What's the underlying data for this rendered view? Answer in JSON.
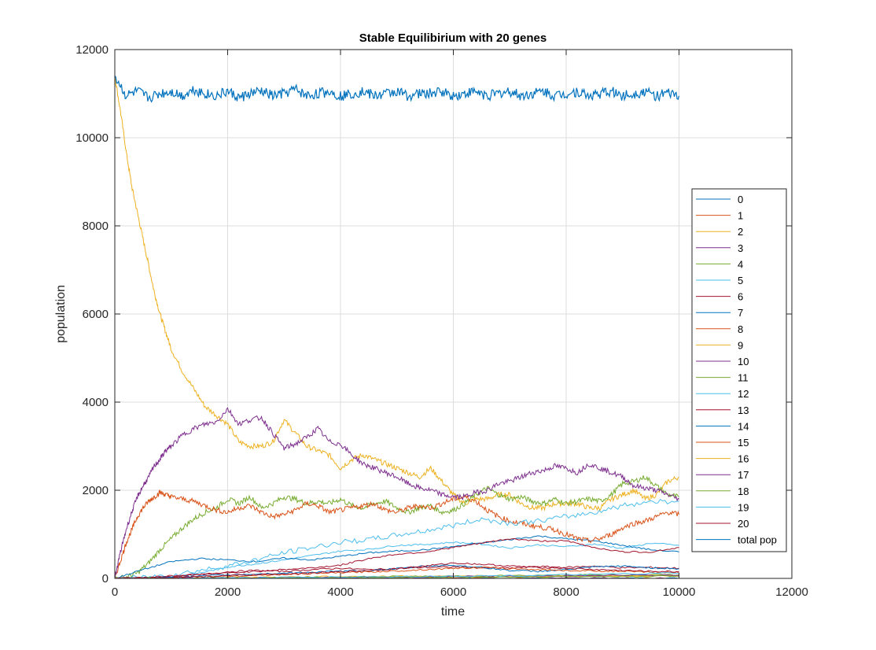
{
  "chart_data": {
    "type": "line",
    "title": "Stable Equilibirium with 20 genes",
    "xlabel": "time",
    "ylabel": "population",
    "xlim": [
      0,
      12000
    ],
    "ylim": [
      0,
      12000
    ],
    "xticks": [
      0,
      2000,
      4000,
      6000,
      8000,
      10000,
      12000
    ],
    "yticks": [
      0,
      2000,
      4000,
      6000,
      8000,
      10000,
      12000
    ],
    "xtick_labels": [
      "0",
      "2000",
      "4000",
      "6000",
      "8000",
      "10000",
      "12000"
    ],
    "ytick_labels": [
      "0",
      "2000",
      "4000",
      "6000",
      "8000",
      "10000",
      "12000"
    ],
    "grid": true,
    "legend_position": "right",
    "series": [
      {
        "name": "0",
        "color": "#0072BD",
        "x": [
          0,
          1000,
          2000,
          3000,
          4000,
          5000,
          6000,
          7000,
          8000,
          9000,
          10000
        ],
        "y": [
          0,
          0,
          0,
          0,
          0,
          0,
          0,
          0,
          0,
          0,
          0
        ]
      },
      {
        "name": "1",
        "color": "#D95319",
        "x": [
          0,
          1000,
          2000,
          3000,
          4000,
          5000,
          6000,
          7000,
          8000,
          9000,
          10000
        ],
        "y": [
          0,
          0,
          0,
          0,
          0,
          0,
          0,
          0,
          0,
          0,
          0
        ]
      },
      {
        "name": "2",
        "color": "#EDB120",
        "x": [
          0,
          100,
          200,
          300,
          400,
          500,
          600,
          700,
          800,
          900,
          1000,
          1200,
          1400,
          1600,
          1800,
          2000,
          2200,
          2400,
          2600,
          2800,
          3000,
          3200,
          3400,
          3600,
          3800,
          4000,
          4200,
          4400,
          4600,
          4800,
          5000,
          5200,
          5400,
          5600,
          5800,
          6000,
          6200,
          6400,
          6600,
          6800,
          7000,
          7200,
          7400,
          7600,
          7800,
          8000,
          8200,
          8400,
          8600,
          8800,
          9000,
          9200,
          9400,
          9600,
          9800,
          10000
        ],
        "y": [
          11400,
          10600,
          9700,
          8900,
          8300,
          7700,
          7100,
          6500,
          6000,
          5600,
          5200,
          4700,
          4300,
          3900,
          3700,
          3500,
          3100,
          3000,
          3000,
          3100,
          3600,
          3300,
          3000,
          2900,
          2800,
          2500,
          2700,
          2800,
          2700,
          2600,
          2500,
          2400,
          2300,
          2500,
          2200,
          1900,
          1700,
          1800,
          1800,
          1900,
          1900,
          1700,
          1600,
          1600,
          1700,
          1700,
          1700,
          1600,
          1600,
          1800,
          1900,
          2000,
          1800,
          1900,
          2200,
          2300
        ]
      },
      {
        "name": "3",
        "color": "#7E2F8E",
        "x": [
          0,
          1000,
          2000,
          3000,
          4000,
          5000,
          6000,
          7000,
          8000,
          9000,
          10000
        ],
        "y": [
          0,
          0,
          0,
          0,
          0,
          0,
          0,
          0,
          0,
          0,
          0
        ]
      },
      {
        "name": "4",
        "color": "#77AC30",
        "x": [
          0,
          200,
          400,
          600,
          800,
          1000,
          1200,
          1400,
          1600,
          1800,
          2000,
          2200,
          2400,
          2600,
          2800,
          3000,
          3200,
          3400,
          3600,
          3800,
          4000,
          4200,
          4400,
          4600,
          4800,
          5000,
          5200,
          5400,
          5600,
          5800,
          6000,
          6200,
          6400,
          6600,
          6800,
          7000,
          7200,
          7400,
          7600,
          7800,
          8000,
          8200,
          8400,
          8600,
          8800,
          9000,
          9200,
          9400,
          9600,
          9800,
          10000
        ],
        "y": [
          0,
          30,
          120,
          350,
          650,
          900,
          1150,
          1350,
          1500,
          1600,
          1800,
          1700,
          1850,
          1600,
          1700,
          1850,
          1800,
          1700,
          1750,
          1700,
          1800,
          1650,
          1600,
          1700,
          1750,
          1600,
          1500,
          1600,
          1650,
          1500,
          1550,
          1700,
          1900,
          2050,
          1900,
          1800,
          1850,
          1750,
          1700,
          1800,
          1700,
          1750,
          1800,
          1750,
          1900,
          2150,
          2200,
          2300,
          2100,
          1900,
          1850
        ]
      },
      {
        "name": "5",
        "color": "#4DBEEE",
        "x": [
          0,
          500,
          1000,
          1500,
          2000,
          2500,
          3000,
          3500,
          4000,
          4500,
          5000,
          5500,
          6000,
          6500,
          7000,
          7500,
          8000,
          8500,
          9000,
          9500,
          10000
        ],
        "y": [
          0,
          10,
          30,
          120,
          260,
          330,
          420,
          520,
          620,
          660,
          750,
          770,
          820,
          780,
          690,
          760,
          720,
          780,
          680,
          800,
          750
        ]
      },
      {
        "name": "6",
        "color": "#A2142F",
        "x": [
          0,
          500,
          1000,
          1500,
          2000,
          2500,
          3000,
          3500,
          4000,
          4500,
          5000,
          5500,
          6000,
          6500,
          7000,
          7500,
          8000,
          8500,
          9000,
          9500,
          10000
        ],
        "y": [
          0,
          10,
          40,
          80,
          150,
          180,
          160,
          200,
          230,
          200,
          220,
          250,
          260,
          240,
          230,
          270,
          250,
          280,
          240,
          250,
          230
        ]
      },
      {
        "name": "7",
        "color": "#0072BD",
        "x": [
          0,
          500,
          1000,
          1500,
          2000,
          2500,
          3000,
          3500,
          4000,
          4500,
          5000,
          5500,
          6000,
          6500,
          7000,
          7500,
          8000,
          8500,
          9000,
          9500,
          10000
        ],
        "y": [
          0,
          200,
          380,
          450,
          420,
          380,
          460,
          420,
          500,
          580,
          620,
          650,
          720,
          800,
          880,
          960,
          900,
          850,
          750,
          650,
          600
        ]
      },
      {
        "name": "8",
        "color": "#D95319",
        "x": [
          0,
          100,
          200,
          300,
          400,
          500,
          600,
          700,
          800,
          900,
          1000,
          1200,
          1400,
          1600,
          1800,
          2000,
          2200,
          2400,
          2600,
          2800,
          3000,
          3200,
          3400,
          3600,
          3800,
          4000,
          4200,
          4400,
          4600,
          4800,
          5000,
          5200,
          5400,
          5600,
          5800,
          6000,
          6200,
          6400,
          6600,
          6800,
          7000,
          7200,
          7400,
          7600,
          7800,
          8000,
          8200,
          8400,
          8600,
          8800,
          9000,
          9200,
          9400,
          9600,
          9800,
          10000
        ],
        "y": [
          0,
          400,
          800,
          1100,
          1400,
          1600,
          1750,
          1850,
          1950,
          1900,
          1850,
          1800,
          1750,
          1650,
          1550,
          1500,
          1600,
          1650,
          1500,
          1400,
          1450,
          1550,
          1700,
          1650,
          1500,
          1550,
          1600,
          1650,
          1700,
          1550,
          1500,
          1600,
          1650,
          1600,
          1700,
          1800,
          1850,
          1750,
          1550,
          1400,
          1300,
          1250,
          1200,
          1150,
          1100,
          1000,
          900,
          850,
          900,
          1000,
          1150,
          1250,
          1300,
          1400,
          1500,
          1450
        ]
      },
      {
        "name": "9",
        "color": "#EDB120",
        "x": [
          0,
          1000,
          2000,
          3000,
          4000,
          5000,
          6000,
          7000,
          8000,
          9000,
          10000
        ],
        "y": [
          0,
          10,
          20,
          30,
          40,
          50,
          50,
          60,
          60,
          60,
          50
        ]
      },
      {
        "name": "10",
        "color": "#7E2F8E",
        "x": [
          0,
          100,
          200,
          300,
          400,
          500,
          600,
          700,
          800,
          900,
          1000,
          1200,
          1400,
          1600,
          1800,
          2000,
          2200,
          2400,
          2600,
          2800,
          3000,
          3200,
          3400,
          3600,
          3800,
          4000,
          4200,
          4400,
          4600,
          4800,
          5000,
          5200,
          5400,
          5600,
          5800,
          6000,
          6200,
          6400,
          6600,
          6800,
          7000,
          7200,
          7400,
          7600,
          7800,
          8000,
          8200,
          8400,
          8600,
          8800,
          9000,
          9200,
          9400,
          9600,
          9800,
          10000
        ],
        "y": [
          0,
          600,
          1100,
          1500,
          1850,
          2100,
          2300,
          2550,
          2700,
          2900,
          3000,
          3250,
          3400,
          3500,
          3550,
          3850,
          3500,
          3600,
          3650,
          3300,
          2950,
          3050,
          3200,
          3400,
          3100,
          3050,
          2800,
          2600,
          2500,
          2400,
          2300,
          2150,
          2050,
          2000,
          1900,
          1850,
          1850,
          1950,
          2000,
          2150,
          2200,
          2300,
          2400,
          2450,
          2550,
          2500,
          2400,
          2600,
          2500,
          2400,
          2300,
          2100,
          2050,
          2000,
          1900,
          1800
        ]
      },
      {
        "name": "11",
        "color": "#77AC30",
        "x": [
          0,
          1000,
          2000,
          3000,
          4000,
          5000,
          6000,
          7000,
          8000,
          9000,
          10000
        ],
        "y": [
          0,
          5,
          10,
          20,
          30,
          40,
          50,
          60,
          70,
          80,
          80
        ]
      },
      {
        "name": "12",
        "color": "#4DBEEE",
        "x": [
          0,
          500,
          1000,
          1500,
          2000,
          2500,
          3000,
          3500,
          4000,
          4500,
          5000,
          5500,
          6000,
          6500,
          7000,
          7500,
          8000,
          8500,
          9000,
          9500,
          10000
        ],
        "y": [
          0,
          20,
          80,
          180,
          280,
          420,
          580,
          700,
          820,
          880,
          980,
          1080,
          1200,
          1350,
          1250,
          1300,
          1400,
          1500,
          1650,
          1750,
          1750
        ]
      },
      {
        "name": "13",
        "color": "#A2142F",
        "x": [
          0,
          500,
          1000,
          1500,
          2000,
          2500,
          3000,
          3500,
          4000,
          4500,
          5000,
          5500,
          6000,
          6500,
          7000,
          7500,
          8000,
          8500,
          9000,
          9500,
          10000
        ],
        "y": [
          0,
          20,
          60,
          90,
          120,
          160,
          200,
          240,
          300,
          450,
          550,
          600,
          700,
          800,
          900,
          850,
          850,
          700,
          600,
          600,
          700
        ]
      },
      {
        "name": "14",
        "color": "#0072BD",
        "x": [
          0,
          500,
          1000,
          1500,
          2000,
          2500,
          3000,
          3500,
          4000,
          4500,
          5000,
          5500,
          6000,
          6500,
          7000,
          7500,
          8000,
          8500,
          9000,
          9500,
          10000
        ],
        "y": [
          0,
          10,
          30,
          50,
          80,
          100,
          120,
          140,
          160,
          180,
          220,
          280,
          300,
          250,
          180,
          160,
          200,
          260,
          280,
          240,
          220
        ]
      },
      {
        "name": "15",
        "color": "#D95319",
        "x": [
          0,
          500,
          1000,
          1500,
          2000,
          2500,
          3000,
          3500,
          4000,
          4500,
          5000,
          5500,
          6000,
          6500,
          7000,
          7500,
          8000,
          8500,
          9000,
          9500,
          10000
        ],
        "y": [
          0,
          5,
          15,
          30,
          50,
          70,
          90,
          110,
          130,
          150,
          170,
          200,
          230,
          250,
          220,
          200,
          180,
          170,
          160,
          140,
          130
        ]
      },
      {
        "name": "16",
        "color": "#EDB120",
        "x": [
          0,
          1000,
          2000,
          3000,
          4000,
          5000,
          6000,
          7000,
          8000,
          9000,
          10000
        ],
        "y": [
          0,
          5,
          10,
          15,
          20,
          25,
          30,
          40,
          50,
          60,
          60
        ]
      },
      {
        "name": "17",
        "color": "#7E2F8E",
        "x": [
          0,
          1000,
          2000,
          3000,
          4000,
          5000,
          6000,
          7000,
          8000,
          9000,
          10000
        ],
        "y": [
          0,
          5,
          10,
          15,
          20,
          30,
          40,
          50,
          60,
          70,
          70
        ]
      },
      {
        "name": "18",
        "color": "#77AC30",
        "x": [
          0,
          1000,
          2000,
          3000,
          4000,
          5000,
          6000,
          7000,
          8000,
          9000,
          10000
        ],
        "y": [
          0,
          5,
          10,
          10,
          20,
          20,
          30,
          30,
          40,
          40,
          50
        ]
      },
      {
        "name": "19",
        "color": "#4DBEEE",
        "x": [
          0,
          1000,
          2000,
          3000,
          4000,
          5000,
          6000,
          7000,
          8000,
          9000,
          10000
        ],
        "y": [
          0,
          5,
          10,
          20,
          30,
          40,
          50,
          60,
          80,
          100,
          120
        ]
      },
      {
        "name": "20",
        "color": "#A2142F",
        "x": [
          0,
          500,
          1000,
          1500,
          2000,
          2500,
          3000,
          3500,
          4000,
          4500,
          5000,
          5500,
          6000,
          6500,
          7000,
          7500,
          8000,
          8500,
          9000,
          9500,
          10000
        ],
        "y": [
          0,
          10,
          20,
          40,
          60,
          80,
          100,
          120,
          150,
          180,
          220,
          280,
          350,
          320,
          280,
          250,
          230,
          200,
          180,
          160,
          150
        ]
      },
      {
        "name": "total pop",
        "color": "#0072BD",
        "x": [
          0,
          200,
          400,
          600,
          800,
          1000,
          1200,
          1400,
          1600,
          1800,
          2000,
          2200,
          2400,
          2600,
          2800,
          3000,
          3200,
          3400,
          3600,
          3800,
          4000,
          4200,
          4400,
          4600,
          4800,
          5000,
          5200,
          5400,
          5600,
          5800,
          6000,
          6200,
          6400,
          6600,
          6800,
          7000,
          7200,
          7400,
          7600,
          7800,
          8000,
          8200,
          8400,
          8600,
          8800,
          9000,
          9200,
          9400,
          9600,
          9800,
          10000
        ],
        "y": [
          11400,
          10950,
          11050,
          10900,
          11000,
          11050,
          10950,
          11100,
          11000,
          10950,
          11050,
          10900,
          11000,
          11050,
          10950,
          11000,
          11100,
          10950,
          11000,
          11050,
          10950,
          11000,
          11050,
          10950,
          11000,
          11050,
          10950,
          11000,
          11000,
          11050,
          10950,
          11000,
          11050,
          10950,
          11000,
          11050,
          10950,
          11000,
          11050,
          10950,
          11000,
          11050,
          10950,
          11000,
          11050,
          10950,
          11000,
          11050,
          10950,
          11000,
          10950
        ]
      }
    ]
  }
}
